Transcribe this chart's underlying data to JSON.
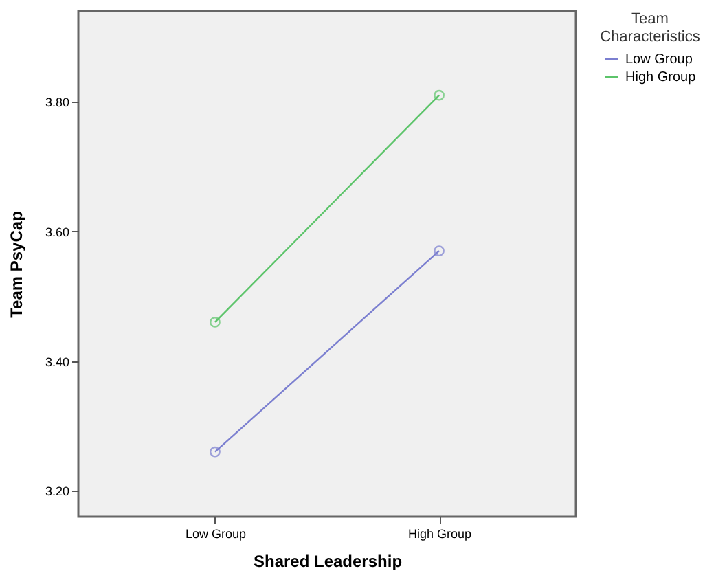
{
  "chart_data": {
    "type": "line",
    "xlabel": "Shared Leadership",
    "ylabel": "Team PsyCap",
    "legend_title": "Team Characteristics",
    "categories": [
      "Low Group",
      "High Group"
    ],
    "series": [
      {
        "name": "Low Group",
        "color": "#7b7fd0",
        "values": [
          3.26,
          3.57
        ]
      },
      {
        "name": "High Group",
        "color": "#5cc46a",
        "values": [
          3.46,
          3.81
        ]
      }
    ],
    "ylim": [
      3.16,
      3.94
    ],
    "yticks": [
      {
        "value": 3.2,
        "label": "3.20"
      },
      {
        "value": 3.4,
        "label": "3.40"
      },
      {
        "value": 3.6,
        "label": "3.60"
      },
      {
        "value": 3.8,
        "label": "3.80"
      }
    ],
    "grid": false,
    "legend": "top right",
    "marker": "circle",
    "line_style": "solid"
  }
}
